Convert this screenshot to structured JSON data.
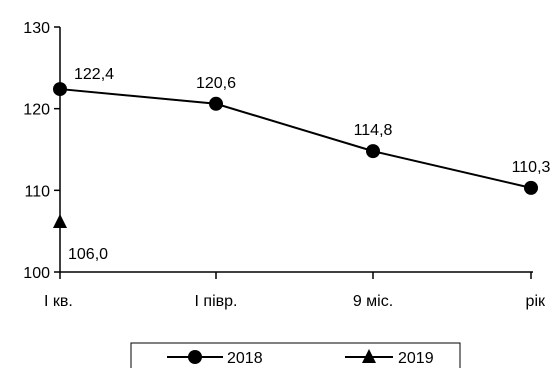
{
  "chart_data": {
    "type": "line",
    "title": "",
    "xlabel": "",
    "ylabel": "",
    "categories": [
      "I кв.",
      "I півр.",
      "9 міс.",
      "рік"
    ],
    "ylim": [
      100,
      130
    ],
    "yticks": [
      "100",
      "110",
      "120",
      "130"
    ],
    "grid": false,
    "legend_position": "bottom",
    "series": [
      {
        "name": "2018",
        "marker": "circle",
        "values": [
          122.4,
          120.6,
          114.8,
          110.3
        ],
        "labels": [
          "122,4",
          "120,6",
          "114,8",
          "110,3"
        ]
      },
      {
        "name": "2019",
        "marker": "triangle",
        "values": [
          106.0,
          null,
          null,
          null
        ],
        "labels": [
          "106,0",
          "",
          "",
          ""
        ]
      }
    ],
    "color": "#000000"
  }
}
